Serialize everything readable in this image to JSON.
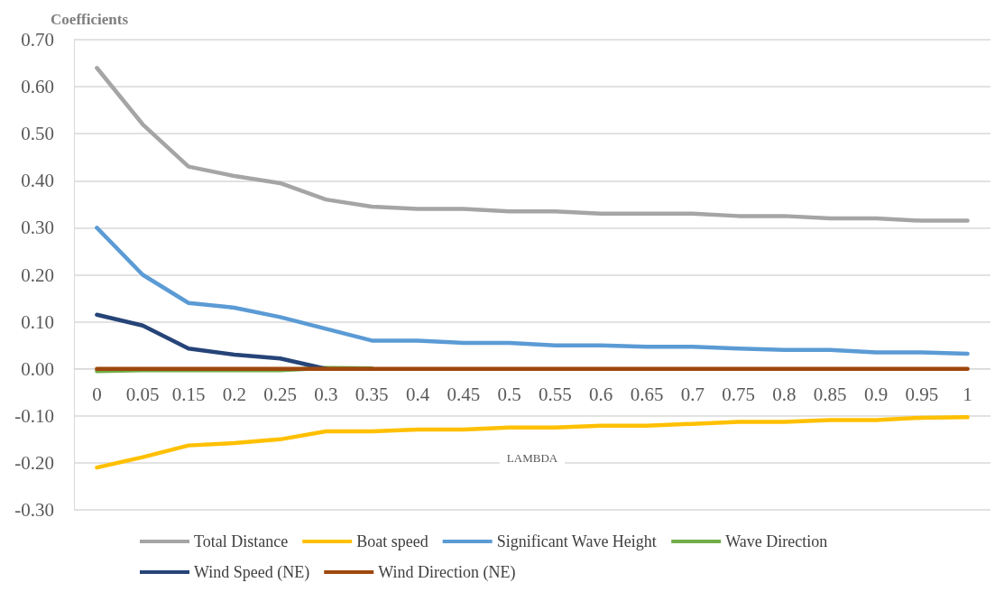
{
  "chart_data": {
    "type": "line",
    "ylabel": "Coefficients",
    "xlabel": "LAMBDA",
    "categories": [
      "0",
      "0.05",
      "0.15",
      "0.2",
      "0.25",
      "0.3",
      "0.35",
      "0.4",
      "0.45",
      "0.5",
      "0.55",
      "0.6",
      "0.65",
      "0.7",
      "0.75",
      "0.8",
      "0.85",
      "0.9",
      "0.95",
      "1"
    ],
    "series": [
      {
        "name": "Total Distance",
        "color": "#a5a5a5",
        "values": [
          0.64,
          0.52,
          0.43,
          0.41,
          0.395,
          0.36,
          0.345,
          0.34,
          0.34,
          0.335,
          0.335,
          0.33,
          0.33,
          0.33,
          0.325,
          0.325,
          0.32,
          0.32,
          0.315,
          0.315
        ]
      },
      {
        "name": "Boat speed",
        "color": "#ffc000",
        "values": [
          -0.21,
          -0.188,
          -0.163,
          -0.158,
          -0.15,
          -0.133,
          -0.133,
          -0.129,
          -0.129,
          -0.125,
          -0.125,
          -0.121,
          -0.121,
          -0.117,
          -0.113,
          -0.113,
          -0.109,
          -0.109,
          -0.104,
          -0.103
        ]
      },
      {
        "name": "Significant Wave Height",
        "color": "#5b9bd5",
        "values": [
          0.3,
          0.2,
          0.14,
          0.13,
          0.11,
          0.085,
          0.06,
          0.06,
          0.055,
          0.055,
          0.05,
          0.05,
          0.047,
          0.047,
          0.043,
          0.04,
          0.04,
          0.035,
          0.035,
          0.032
        ]
      },
      {
        "name": "Wave Direction",
        "color": "#70ad47",
        "values": [
          -0.005,
          -0.003,
          -0.003,
          -0.003,
          -0.003,
          0.002,
          0.001,
          null,
          null,
          null,
          null,
          null,
          null,
          null,
          null,
          null,
          null,
          null,
          null,
          null
        ]
      },
      {
        "name": "Wind Speed (NE)",
        "color": "#264478",
        "values": [
          0.115,
          0.092,
          0.043,
          0.03,
          0.022,
          0,
          null,
          null,
          null,
          null,
          null,
          null,
          null,
          null,
          null,
          null,
          null,
          null,
          null,
          null
        ]
      },
      {
        "name": "Wind Direction (NE)",
        "color": "#9e480e",
        "values": [
          0,
          0,
          0,
          0,
          0,
          0,
          0,
          0,
          0,
          0,
          0,
          0,
          0,
          0,
          0,
          0,
          0,
          0,
          0,
          0
        ]
      }
    ],
    "ylim": [
      -0.3,
      0.7
    ],
    "yticks": [
      {
        "value": -0.3,
        "label": "-0.30"
      },
      {
        "value": -0.2,
        "label": "-0.20"
      },
      {
        "value": -0.1,
        "label": "-0.10"
      },
      {
        "value": 0,
        "label": "0.00"
      },
      {
        "value": 0.1,
        "label": "0.10"
      },
      {
        "value": 0.2,
        "label": "0.20"
      },
      {
        "value": 0.3,
        "label": "0.30"
      },
      {
        "value": 0.4,
        "label": "0.40"
      },
      {
        "value": 0.5,
        "label": "0.50"
      },
      {
        "value": 0.6,
        "label": "0.60"
      },
      {
        "value": 0.7,
        "label": "0.70"
      }
    ],
    "grid": "y",
    "legend": "bottom",
    "marker": "none",
    "line_style": "solid"
  }
}
